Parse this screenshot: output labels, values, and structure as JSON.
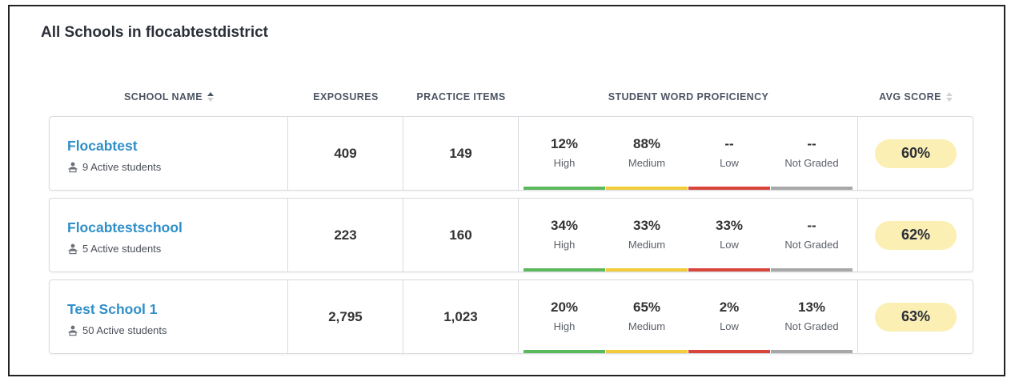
{
  "title": "All Schools in flocabtestdistrict",
  "columns": {
    "school_name": "SCHOOL NAME",
    "exposures": "EXPOSURES",
    "practice_items": "PRACTICE ITEMS",
    "student_word_proficiency": "STUDENT WORD PROFICIENCY",
    "avg_score": "AVG SCORE"
  },
  "proficiency_labels": {
    "high": "High",
    "medium": "Medium",
    "low": "Low",
    "not_graded": "Not Graded"
  },
  "colors": {
    "high": "#5cb85c",
    "medium": "#f2cc3a",
    "low": "#d9443b",
    "not_graded": "#a8a8a8",
    "link": "#2f8fc9",
    "score_badge": "#fbefb3"
  },
  "rows": [
    {
      "name": "Flocabtest",
      "students": "9 Active students",
      "exposures": "409",
      "practice_items": "149",
      "high": "12%",
      "medium": "88%",
      "low": "--",
      "not_graded": "--",
      "avg_score": "60%"
    },
    {
      "name": "Flocabtestschool",
      "students": "5 Active students",
      "exposures": "223",
      "practice_items": "160",
      "high": "34%",
      "medium": "33%",
      "low": "33%",
      "not_graded": "--",
      "avg_score": "62%"
    },
    {
      "name": "Test School 1",
      "students": "50 Active students",
      "exposures": "2,795",
      "practice_items": "1,023",
      "high": "20%",
      "medium": "65%",
      "low": "2%",
      "not_graded": "13%",
      "avg_score": "63%"
    }
  ]
}
